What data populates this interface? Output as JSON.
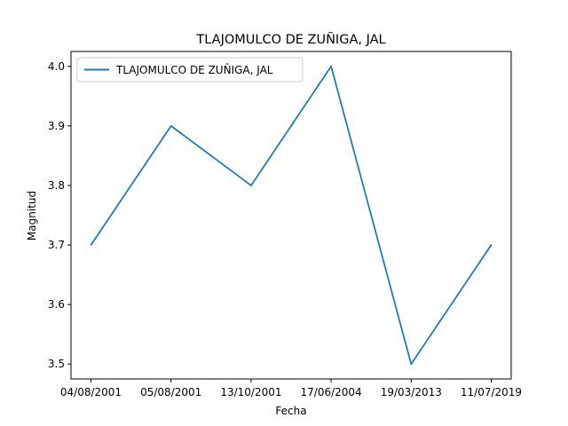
{
  "chart_data": {
    "type": "line",
    "title": "TLAJOMULCO DE ZUÑIGA, JAL",
    "xlabel": "Fecha",
    "ylabel": "Magnitud",
    "categories": [
      "04/08/2001",
      "05/08/2001",
      "13/10/2001",
      "17/06/2004",
      "19/03/2013",
      "11/07/2019"
    ],
    "series": [
      {
        "name": "TLAJOMULCO DE ZUÑIGA, JAL",
        "values": [
          3.7,
          3.9,
          3.8,
          4.0,
          3.5,
          3.7
        ],
        "color": "#1f77b4"
      }
    ],
    "ylim": [
      3.475,
      4.025
    ],
    "yticks": [
      "3.5",
      "3.6",
      "3.7",
      "3.8",
      "3.9",
      "4.0"
    ],
    "grid": false,
    "legend_position": "upper-left"
  }
}
